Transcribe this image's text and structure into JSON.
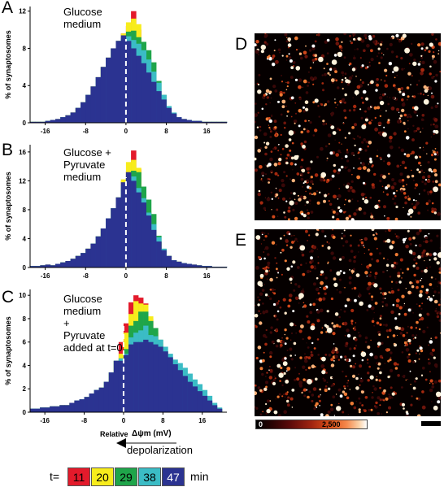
{
  "panels": [
    {
      "letter": "A",
      "description": "Glucose\nmedium"
    },
    {
      "letter": "B",
      "description": "Glucose +\nPyruvate\nmedium"
    },
    {
      "letter": "C",
      "description": "Glucose\nmedium\n+\nPyruvate\nadded at t=0"
    }
  ],
  "image_panels": [
    {
      "letter": "D"
    },
    {
      "letter": "E"
    }
  ],
  "x_axis": {
    "relative_label": "Relative",
    "symbol_label": "Δψm (mV)"
  },
  "depolarization_label": "depolarization",
  "colorbar": {
    "min_label": "0",
    "max_label": "2,500"
  },
  "time_legend": {
    "prefix": "t=",
    "suffix": "min",
    "items": [
      {
        "label": "11",
        "color": "#e31a2b"
      },
      {
        "label": "20",
        "color": "#f7ec1c"
      },
      {
        "label": "29",
        "color": "#1fa54a"
      },
      {
        "label": "38",
        "color": "#3bbcc5"
      },
      {
        "label": "47",
        "color": "#2b3391"
      }
    ]
  },
  "chart_data": [
    {
      "type": "bar",
      "ylabel": "% of synaptosomes",
      "xlabel": "Relative Δψm (mV)",
      "xlim": [
        -19,
        20
      ],
      "ylim": [
        0,
        12.5
      ],
      "xticks": [
        -16,
        -8,
        0,
        8,
        16
      ],
      "yticks": [
        0,
        4,
        8,
        12
      ],
      "bins": [
        -18.5,
        -17.5,
        -16.5,
        -15.5,
        -14.5,
        -13.5,
        -12.5,
        -11.5,
        -10.5,
        -9.5,
        -8.5,
        -7.5,
        -6.5,
        -5.5,
        -4.5,
        -3.5,
        -2.5,
        -1.5,
        -0.5,
        0.5,
        1.5,
        2.5,
        3.5,
        4.5,
        5.5,
        6.5,
        7.5,
        8.5,
        9.5,
        10.5,
        11.5,
        12.5,
        13.5,
        14.5,
        15.5,
        16.5,
        17.5,
        18.5,
        19.5
      ],
      "series": [
        {
          "name": "11",
          "values": [
            0.1,
            0.1,
            0.1,
            0.2,
            0.3,
            0.4,
            0.6,
            0.8,
            1.1,
            1.6,
            2.2,
            3,
            3.9,
            4.9,
            6,
            7,
            8,
            8.8,
            9.6,
            10.4,
            12,
            10,
            8,
            6,
            4.2,
            2.8,
            1.8,
            1.2,
            0.8,
            0.5,
            0.4,
            0.3,
            0.2,
            0.2,
            0.1,
            0.1,
            0.1,
            0.1,
            0.1
          ]
        },
        {
          "name": "20",
          "values": [
            0.1,
            0.1,
            0.1,
            0.2,
            0.3,
            0.4,
            0.6,
            0.8,
            1.1,
            1.6,
            2.2,
            3,
            3.9,
            4.9,
            6,
            7,
            8,
            8.8,
            9.6,
            10.8,
            11.2,
            10.6,
            8.6,
            6.4,
            4.5,
            3,
            1.9,
            1.2,
            0.8,
            0.5,
            0.4,
            0.3,
            0.2,
            0.2,
            0.1,
            0.1,
            0.1,
            0.1,
            0.1
          ]
        },
        {
          "name": "29",
          "values": [
            0.1,
            0.1,
            0.1,
            0.2,
            0.3,
            0.4,
            0.6,
            0.8,
            1.1,
            1.6,
            2.2,
            3,
            3.9,
            4.9,
            6,
            7,
            8,
            8.8,
            9.2,
            9.8,
            9.9,
            9.2,
            8.7,
            7.8,
            6.5,
            4.5,
            3,
            1.5,
            0.9,
            0.5,
            0.4,
            0.3,
            0.2,
            0.2,
            0.1,
            0.1,
            0.1,
            0.1,
            0.1
          ]
        },
        {
          "name": "38",
          "values": [
            0.1,
            0.1,
            0.1,
            0.2,
            0.3,
            0.4,
            0.6,
            0.8,
            1.1,
            1.6,
            2.2,
            3,
            3.9,
            4.9,
            6,
            7,
            8,
            8.8,
            9.1,
            9.3,
            8.9,
            8.5,
            7.8,
            6.8,
            5.5,
            4.3,
            3,
            1.8,
            1.1,
            0.6,
            0.4,
            0.3,
            0.2,
            0.2,
            0.1,
            0.1,
            0.1,
            0.1,
            0.1
          ]
        },
        {
          "name": "47",
          "values": [
            0.1,
            0.1,
            0.1,
            0.2,
            0.3,
            0.4,
            0.6,
            0.8,
            1.1,
            1.6,
            2.2,
            3,
            3.9,
            4.9,
            6,
            7,
            8,
            8.8,
            9.4,
            8.8,
            8,
            7.2,
            6.4,
            5.4,
            4.4,
            3.4,
            2.5,
            1.6,
            1,
            0.6,
            0.4,
            0.3,
            0.2,
            0.2,
            0.1,
            0.1,
            0.1,
            0.1,
            0.1
          ]
        }
      ]
    },
    {
      "type": "bar",
      "ylabel": "% of synaptosomes",
      "xlim": [
        -19,
        20
      ],
      "ylim": [
        0,
        17
      ],
      "xticks": [
        -16,
        -8,
        0,
        8,
        16
      ],
      "yticks": [
        0,
        4,
        8,
        12,
        16
      ],
      "bins": [
        -18.5,
        -17.5,
        -16.5,
        -15.5,
        -14.5,
        -13.5,
        -12.5,
        -11.5,
        -10.5,
        -9.5,
        -8.5,
        -7.5,
        -6.5,
        -5.5,
        -4.5,
        -3.5,
        -2.5,
        -1.5,
        -0.5,
        0.5,
        1.5,
        2.5,
        3.5,
        4.5,
        5.5,
        6.5,
        7.5,
        8.5,
        9.5,
        10.5,
        11.5,
        12.5,
        13.5,
        14.5,
        15.5,
        16.5,
        17.5,
        18.5,
        19.5
      ],
      "series": [
        {
          "name": "11",
          "values": [
            0.2,
            0.2,
            0.3,
            0.4,
            0.3,
            0.5,
            0.7,
            0.9,
            1.2,
            1.6,
            2,
            2.6,
            3.3,
            4.3,
            5.4,
            6.8,
            8.2,
            9.7,
            12,
            13.3,
            16.2,
            13.6,
            10.2,
            7.6,
            5,
            3.5,
            2.3,
            1.6,
            1,
            0.8,
            0.6,
            0.5,
            0.4,
            0.3,
            0.2,
            0.2,
            0.1,
            0.1,
            0.1
          ]
        },
        {
          "name": "20",
          "values": [
            0.2,
            0.2,
            0.3,
            0.4,
            0.3,
            0.5,
            0.7,
            0.9,
            1.2,
            1.6,
            2,
            2.6,
            3.3,
            4.3,
            5.4,
            6.8,
            8.2,
            9.7,
            12.2,
            14.6,
            14.9,
            13.8,
            10.5,
            7.8,
            5.1,
            3.5,
            2.3,
            1.6,
            1,
            0.8,
            0.6,
            0.5,
            0.4,
            0.3,
            0.2,
            0.2,
            0.1,
            0.1,
            0.1
          ]
        },
        {
          "name": "29",
          "values": [
            0.2,
            0.2,
            0.3,
            0.4,
            0.3,
            0.5,
            0.7,
            0.9,
            1.2,
            1.6,
            2,
            2.6,
            3.3,
            4.3,
            5.4,
            6.8,
            8.2,
            9.7,
            11,
            12.6,
            13.4,
            13.2,
            11.2,
            9.4,
            7.4,
            4.4,
            2.6,
            1.6,
            1,
            0.8,
            0.6,
            0.5,
            0.4,
            0.3,
            0.2,
            0.2,
            0.1,
            0.1,
            0.1
          ]
        },
        {
          "name": "38",
          "values": [
            0.2,
            0.2,
            0.3,
            0.4,
            0.3,
            0.5,
            0.7,
            0.9,
            1.2,
            1.6,
            2,
            2.6,
            3.3,
            4.3,
            5.4,
            6.8,
            8.2,
            9.7,
            11.4,
            13,
            12.6,
            11,
            9.6,
            7.6,
            6,
            4.2,
            2.6,
            1.6,
            1,
            0.8,
            0.6,
            0.5,
            0.4,
            0.3,
            0.2,
            0.2,
            0.1,
            0.1,
            0.1
          ]
        },
        {
          "name": "47",
          "values": [
            0.2,
            0.2,
            0.3,
            0.4,
            0.3,
            0.5,
            0.7,
            0.9,
            1.2,
            1.6,
            2,
            2.6,
            3.3,
            4.3,
            5.4,
            6.8,
            8.2,
            9.7,
            11.8,
            13.2,
            12,
            10.4,
            9,
            7.2,
            5.2,
            3.6,
            2.4,
            1.6,
            1,
            0.8,
            0.6,
            0.5,
            0.4,
            0.3,
            0.2,
            0.2,
            0.1,
            0.1,
            0.1
          ]
        }
      ]
    },
    {
      "type": "bar",
      "ylabel": "% of synaptosomes",
      "xlabel": "Relative Δψm (mV)",
      "xlim": [
        -19,
        21
      ],
      "ylim": [
        0,
        10.5
      ],
      "xticks": [
        -16,
        -8,
        0,
        8,
        16
      ],
      "yticks": [
        0,
        2,
        4,
        6,
        8,
        10
      ],
      "bins": [
        -18.5,
        -17.5,
        -16.5,
        -15.5,
        -14.5,
        -13.5,
        -12.5,
        -11.5,
        -10.5,
        -9.5,
        -8.5,
        -7.5,
        -6.5,
        -5.5,
        -4.5,
        -3.5,
        -2.5,
        -1.5,
        -0.5,
        0.5,
        1.5,
        2.5,
        3.5,
        4.5,
        5.5,
        6.5,
        7.5,
        8.5,
        9.5,
        10.5,
        11.5,
        12.5,
        13.5,
        14.5,
        15.5,
        16.5,
        17.5,
        18.5,
        19.5
      ],
      "series": [
        {
          "name": "11",
          "values": [
            0.3,
            0.3,
            0.4,
            0.4,
            0.5,
            0.5,
            0.6,
            0.6,
            0.8,
            1,
            1.1,
            1.3,
            1.6,
            1.9,
            2.1,
            2.6,
            3.4,
            4.4,
            6,
            7.6,
            9.4,
            10,
            9.8,
            9.3,
            8,
            6.8,
            5.7,
            4.8,
            4,
            3.4,
            2.9,
            2.4,
            2,
            1.6,
            1.3,
            1,
            0.7,
            0.4,
            0.2
          ]
        },
        {
          "name": "20",
          "values": [
            0.3,
            0.3,
            0.4,
            0.4,
            0.5,
            0.5,
            0.6,
            0.6,
            0.8,
            1,
            1.1,
            1.3,
            1.6,
            1.9,
            2.1,
            2.6,
            3.4,
            4.4,
            5,
            6.8,
            8.4,
            9.5,
            9.3,
            9.2,
            8.2,
            7,
            5.9,
            4.9,
            4.1,
            3.4,
            2.9,
            2.4,
            2,
            1.6,
            1.3,
            1,
            0.7,
            0.4,
            0.2
          ]
        },
        {
          "name": "29",
          "values": [
            0.3,
            0.3,
            0.4,
            0.4,
            0.5,
            0.5,
            0.6,
            0.6,
            0.8,
            1,
            1.1,
            1.3,
            1.6,
            1.9,
            2.1,
            2.6,
            3.4,
            4.4,
            4.6,
            5.4,
            7.4,
            7.8,
            8.6,
            8.6,
            7.8,
            7.2,
            6.2,
            5.2,
            4.4,
            3.7,
            3.2,
            2.7,
            2.3,
            1.8,
            1.5,
            1.1,
            0.8,
            0.5,
            0.3
          ]
        },
        {
          "name": "38",
          "values": [
            0.3,
            0.3,
            0.4,
            0.4,
            0.5,
            0.5,
            0.6,
            0.6,
            0.8,
            1,
            1.1,
            1.3,
            1.6,
            1.9,
            2.1,
            2.6,
            3.4,
            4.4,
            4.6,
            5,
            6.4,
            6.8,
            7,
            7.4,
            6.6,
            6.5,
            6.2,
            5.6,
            5,
            4.5,
            4.2,
            3.8,
            3.3,
            2.8,
            2.4,
            1.9,
            1.4,
            0.8,
            0.4
          ]
        },
        {
          "name": "47",
          "values": [
            0.3,
            0.3,
            0.4,
            0.4,
            0.5,
            0.5,
            0.6,
            0.6,
            0.8,
            1,
            1.1,
            1.3,
            1.6,
            1.9,
            2.1,
            2.6,
            3.4,
            4.4,
            4.4,
            4.9,
            5.8,
            6,
            6,
            6.2,
            6,
            5.8,
            5.6,
            5.2,
            4.7,
            4.1,
            3.6,
            3.1,
            2.6,
            2.2,
            1.8,
            1.4,
            1,
            0.6,
            0.3
          ]
        }
      ]
    }
  ]
}
